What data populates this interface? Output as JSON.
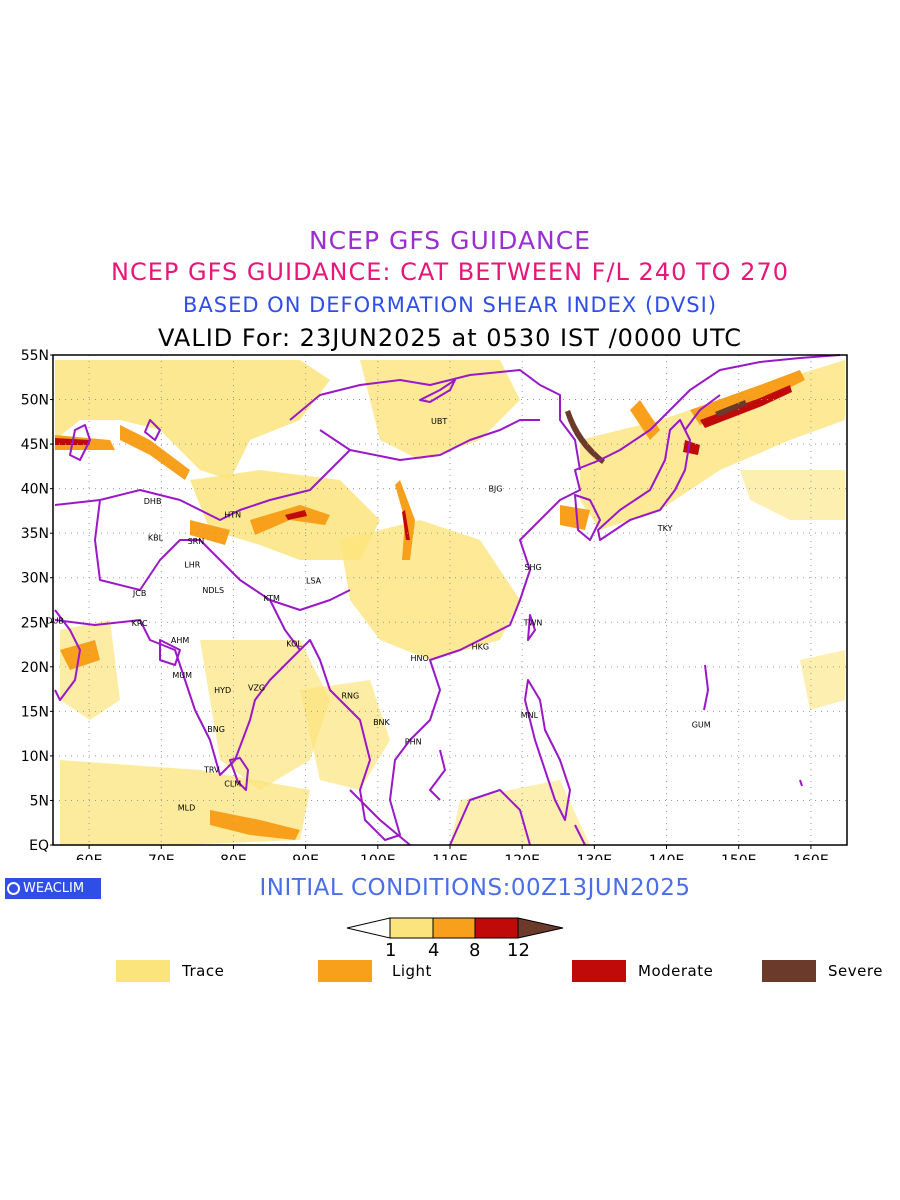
{
  "titles": {
    "line1": "NCEP GFS GUIDANCE",
    "line2": "NCEP GFS GUIDANCE: CAT BETWEEN F/L 240 TO 270",
    "line3": "BASED ON DEFORMATION SHEAR INDEX (DVSI)",
    "line4": "VALID For: 23JUN2025 at 0530 IST /0000 UTC"
  },
  "map": {
    "lat_labels": [
      "55N",
      "50N",
      "45N",
      "40N",
      "35N",
      "30N",
      "25N",
      "20N",
      "15N",
      "10N",
      "5N",
      "EQ"
    ],
    "lon_labels": [
      "60E",
      "70E",
      "80E",
      "90E",
      "100E",
      "110E",
      "120E",
      "130E",
      "140E",
      "150E",
      "160E"
    ],
    "extent": {
      "lon_min": 55,
      "lon_max": 165,
      "lat_min": 0,
      "lat_max": 55
    },
    "grid": "dotted",
    "stations": [
      {
        "code": "UBT",
        "lon": 108.5,
        "lat": 47.6
      },
      {
        "code": "BJG",
        "lon": 116.3,
        "lat": 40.0
      },
      {
        "code": "TKY",
        "lon": 139.8,
        "lat": 35.6
      },
      {
        "code": "SHG",
        "lon": 121.5,
        "lat": 31.2
      },
      {
        "code": "TWN",
        "lon": 121.5,
        "lat": 25.0
      },
      {
        "code": "HKG",
        "lon": 114.2,
        "lat": 22.3
      },
      {
        "code": "HNO",
        "lon": 105.8,
        "lat": 21.0
      },
      {
        "code": "MNL",
        "lon": 121.0,
        "lat": 14.6
      },
      {
        "code": "GUM",
        "lon": 144.8,
        "lat": 13.5
      },
      {
        "code": "PHN",
        "lon": 104.9,
        "lat": 11.6
      },
      {
        "code": "BNK",
        "lon": 100.5,
        "lat": 13.8
      },
      {
        "code": "RNG",
        "lon": 96.2,
        "lat": 16.8
      },
      {
        "code": "KOL",
        "lon": 88.4,
        "lat": 22.6
      },
      {
        "code": "LSA",
        "lon": 91.1,
        "lat": 29.7
      },
      {
        "code": "KTM",
        "lon": 85.3,
        "lat": 27.7
      },
      {
        "code": "NDLS",
        "lon": 77.2,
        "lat": 28.6
      },
      {
        "code": "LHR",
        "lon": 74.3,
        "lat": 31.5
      },
      {
        "code": "SRN",
        "lon": 74.8,
        "lat": 34.1
      },
      {
        "code": "KBL",
        "lon": 69.2,
        "lat": 34.5
      },
      {
        "code": "DHB",
        "lon": 68.8,
        "lat": 38.6
      },
      {
        "code": "HTN",
        "lon": 79.9,
        "lat": 37.1
      },
      {
        "code": "JCB",
        "lon": 67.0,
        "lat": 28.3
      },
      {
        "code": "KRC",
        "lon": 67.0,
        "lat": 24.9
      },
      {
        "code": "DUB",
        "lon": 55.3,
        "lat": 25.2
      },
      {
        "code": "AHM",
        "lon": 72.6,
        "lat": 23.0
      },
      {
        "code": "MUM",
        "lon": 72.9,
        "lat": 19.1
      },
      {
        "code": "HYD",
        "lon": 78.5,
        "lat": 17.4
      },
      {
        "code": "VZG",
        "lon": 83.2,
        "lat": 17.7
      },
      {
        "code": "BNG",
        "lon": 77.6,
        "lat": 13.0
      },
      {
        "code": "TRV",
        "lon": 77.0,
        "lat": 8.5
      },
      {
        "code": "CLM",
        "lon": 79.9,
        "lat": 6.9
      },
      {
        "code": "MLD",
        "lon": 73.5,
        "lat": 4.2
      }
    ]
  },
  "logo": {
    "text": "WEACLIM"
  },
  "initial_conditions": "INITIAL CONDITIONS:00Z13JUN2025",
  "colorbar": {
    "ticks": [
      "1",
      "4",
      "8",
      "12"
    ],
    "colors": [
      "#fce47c",
      "#f8a01c",
      "#c00a0a",
      "#6b3a2a"
    ]
  },
  "legend": [
    {
      "label": "Trace",
      "color": "#fce47c"
    },
    {
      "label": "Light",
      "color": "#f8a01c"
    },
    {
      "label": "Moderate",
      "color": "#c00a0a"
    },
    {
      "label": "Severe",
      "color": "#6b3a2a"
    }
  ]
}
